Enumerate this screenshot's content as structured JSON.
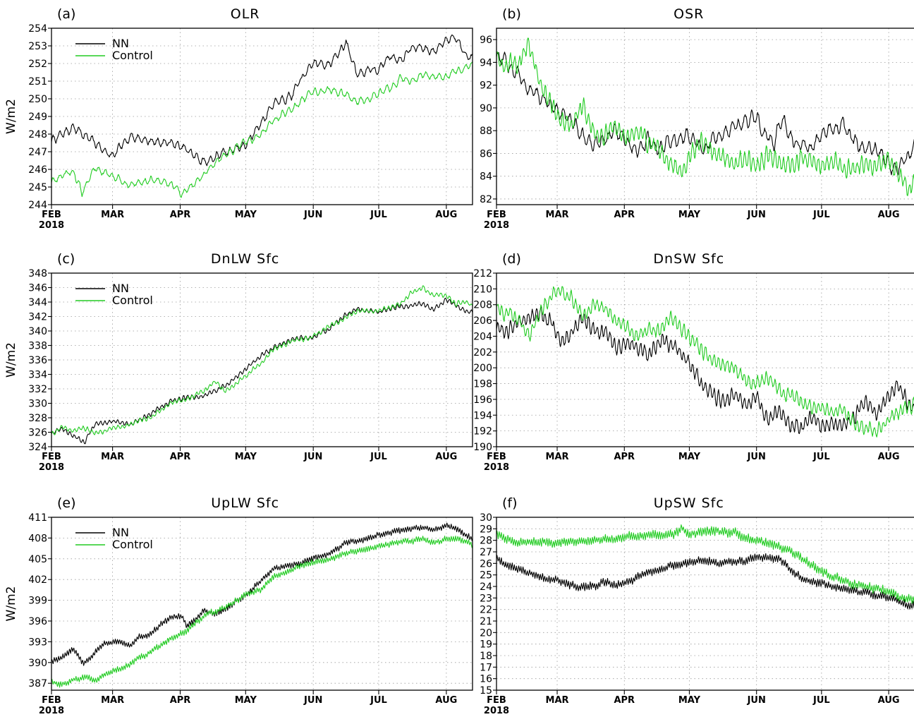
{
  "colors": {
    "nn": "#000000",
    "control": "#22cc22",
    "grid": "#9a9a9a"
  },
  "x_axis": {
    "ticks": [
      {
        "label": "FEB",
        "day": 0,
        "sub": "2018"
      },
      {
        "label": "MAR",
        "day": 28
      },
      {
        "label": "APR",
        "day": 59
      },
      {
        "label": "MAY",
        "day": 89
      },
      {
        "label": "JUN",
        "day": 120
      },
      {
        "label": "JUL",
        "day": 150
      },
      {
        "label": "AUG",
        "day": 181
      }
    ],
    "range": [
      0,
      193
    ]
  },
  "chart_data": [
    {
      "type": "line",
      "panel": "(a)",
      "title": "OLR",
      "ylabel": "W/m2",
      "ylim": [
        244,
        254
      ],
      "yticks": [
        244,
        245,
        246,
        247,
        248,
        249,
        250,
        251,
        252,
        253,
        254
      ],
      "grid": true,
      "legend": "top-left",
      "series": [
        {
          "name": "NN",
          "color": "#000000",
          "x": [
            0,
            10,
            20,
            28,
            36,
            45,
            55,
            62,
            70,
            80,
            89,
            96,
            102,
            110,
            115,
            120,
            128,
            135,
            140,
            145,
            150,
            155,
            160,
            165,
            170,
            175,
            181,
            185,
            190,
            193
          ],
          "y": [
            247.6,
            248.4,
            247.5,
            246.7,
            247.9,
            247.6,
            247.5,
            247.1,
            246.4,
            247.0,
            247.4,
            248.6,
            249.8,
            250.2,
            251.2,
            252.0,
            252.0,
            253.2,
            251.4,
            251.6,
            251.7,
            252.4,
            252.2,
            253.0,
            252.9,
            252.6,
            253.4,
            253.5,
            252.5,
            252.3
          ],
          "jitter": 0.35,
          "period": 3
        },
        {
          "name": "Control",
          "color": "#22cc22",
          "x": [
            0,
            10,
            14,
            20,
            28,
            36,
            45,
            55,
            60,
            70,
            80,
            89,
            96,
            102,
            110,
            115,
            120,
            128,
            135,
            140,
            145,
            150,
            155,
            160,
            165,
            170,
            175,
            181,
            185,
            190,
            193
          ],
          "y": [
            245.3,
            245.9,
            244.7,
            246.1,
            245.6,
            245.1,
            245.4,
            245.2,
            244.6,
            245.7,
            246.9,
            247.5,
            248.0,
            248.8,
            249.4,
            249.9,
            250.3,
            250.5,
            250.2,
            249.8,
            250.0,
            250.3,
            250.6,
            251.2,
            251.0,
            251.4,
            251.3,
            251.2,
            251.5,
            251.8,
            251.9
          ],
          "jitter": 0.3,
          "period": 3
        }
      ]
    },
    {
      "type": "line",
      "panel": "(b)",
      "title": "OSR",
      "ylabel": "",
      "ylim": [
        81.5,
        97
      ],
      "yticks": [
        82,
        84,
        86,
        88,
        90,
        92,
        94,
        96
      ],
      "grid": true,
      "legend": "none",
      "series": [
        {
          "name": "NN",
          "color": "#000000",
          "x": [
            0,
            5,
            10,
            15,
            20,
            25,
            30,
            35,
            40,
            45,
            50,
            55,
            60,
            65,
            70,
            75,
            80,
            89,
            95,
            100,
            110,
            115,
            120,
            125,
            128,
            132,
            135,
            140,
            145,
            150,
            155,
            160,
            165,
            170,
            175,
            181,
            185,
            190,
            193
          ],
          "y": [
            94.6,
            93.8,
            93.0,
            91.5,
            91.0,
            90.2,
            89.5,
            88.6,
            87.5,
            86.8,
            87.2,
            88.2,
            86.8,
            86.2,
            87.2,
            86.5,
            87.0,
            87.6,
            86.3,
            87.3,
            88.3,
            88.9,
            89.2,
            87.5,
            86.8,
            89.5,
            87.3,
            86.8,
            86.5,
            87.4,
            88.2,
            88.6,
            87.0,
            86.3,
            86.5,
            85.0,
            84.6,
            85.8,
            86.8
          ],
          "jitter": 0.9,
          "period": 3
        },
        {
          "name": "Control",
          "color": "#22cc22",
          "x": [
            0,
            5,
            10,
            15,
            20,
            25,
            30,
            35,
            40,
            45,
            50,
            55,
            60,
            65,
            70,
            75,
            80,
            85,
            89,
            95,
            100,
            105,
            110,
            115,
            120,
            125,
            130,
            135,
            140,
            145,
            150,
            155,
            160,
            165,
            170,
            175,
            181,
            185,
            190,
            193
          ],
          "y": [
            94.6,
            93.5,
            94.0,
            95.8,
            92.0,
            90.5,
            88.8,
            88.5,
            90.2,
            87.8,
            87.5,
            88.5,
            87.0,
            88.2,
            87.0,
            86.5,
            85.2,
            84.4,
            85.8,
            86.8,
            86.0,
            85.8,
            85.3,
            85.5,
            85.0,
            85.8,
            85.2,
            85.0,
            85.5,
            85.3,
            84.8,
            85.5,
            84.5,
            84.6,
            85.2,
            84.8,
            85.5,
            84.3,
            83.0,
            83.2
          ],
          "jitter": 1.1,
          "period": 2
        }
      ]
    },
    {
      "type": "line",
      "panel": "(c)",
      "title": "DnLW Sfc",
      "ylabel": "W/m2",
      "ylim": [
        324,
        348
      ],
      "yticks": [
        324,
        326,
        328,
        330,
        332,
        334,
        336,
        338,
        340,
        342,
        344,
        346,
        348
      ],
      "grid": true,
      "legend": "top-left",
      "series": [
        {
          "name": "NN",
          "color": "#000000",
          "x": [
            0,
            5,
            10,
            15,
            20,
            28,
            36,
            45,
            55,
            62,
            70,
            80,
            89,
            96,
            102,
            110,
            115,
            120,
            128,
            135,
            140,
            150,
            160,
            170,
            175,
            181,
            185,
            190,
            193
          ],
          "y": [
            325.8,
            326.5,
            325.5,
            324.6,
            327.2,
            327.5,
            327.0,
            328.5,
            330.4,
            330.8,
            331.0,
            332.5,
            334.6,
            336.5,
            337.8,
            338.8,
            339.1,
            339.0,
            340.5,
            342.3,
            343.0,
            342.6,
            343.4,
            343.8,
            343.0,
            344.3,
            343.6,
            342.8,
            342.4
          ],
          "jitter": 0.45,
          "period": 2
        },
        {
          "name": "Control",
          "color": "#22cc22",
          "x": [
            0,
            5,
            10,
            15,
            20,
            28,
            36,
            45,
            55,
            62,
            70,
            75,
            80,
            89,
            96,
            102,
            110,
            115,
            120,
            128,
            135,
            140,
            150,
            160,
            165,
            170,
            175,
            181,
            185,
            190,
            193
          ],
          "y": [
            325.8,
            326.7,
            326.2,
            326.6,
            325.8,
            326.5,
            327.2,
            328.0,
            330.2,
            330.5,
            331.8,
            333.0,
            331.6,
            333.8,
            335.5,
            337.5,
            338.6,
            338.8,
            339.2,
            340.8,
            341.8,
            342.8,
            342.7,
            343.8,
            345.3,
            346.0,
            345.0,
            345.0,
            343.8,
            344.0,
            343.5
          ],
          "jitter": 0.45,
          "period": 2
        }
      ]
    },
    {
      "type": "line",
      "panel": "(d)",
      "title": "DnSW Sfc",
      "ylabel": "",
      "ylim": [
        190,
        212
      ],
      "yticks": [
        190,
        192,
        194,
        196,
        198,
        200,
        202,
        204,
        206,
        208,
        210,
        212
      ],
      "grid": true,
      "legend": "none",
      "series": [
        {
          "name": "NN",
          "color": "#000000",
          "x": [
            0,
            5,
            10,
            15,
            20,
            25,
            30,
            35,
            40,
            45,
            50,
            55,
            60,
            65,
            70,
            75,
            80,
            85,
            89,
            95,
            100,
            105,
            110,
            115,
            120,
            125,
            130,
            135,
            140,
            145,
            150,
            155,
            160,
            165,
            170,
            175,
            181,
            185,
            190,
            193
          ],
          "y": [
            205.0,
            204.5,
            206.0,
            206.5,
            207.0,
            205.8,
            203.0,
            204.5,
            206.0,
            205.0,
            204.5,
            202.5,
            203.0,
            202.8,
            201.5,
            203.5,
            203.0,
            202.0,
            200.5,
            197.8,
            196.8,
            196.0,
            196.5,
            195.0,
            196.2,
            193.5,
            194.8,
            193.0,
            192.5,
            193.5,
            192.5,
            193.0,
            192.8,
            193.8,
            195.5,
            194.0,
            196.5,
            198.0,
            195.5,
            194.8
          ],
          "jitter": 1.3,
          "period": 2
        },
        {
          "name": "Control",
          "color": "#22cc22",
          "x": [
            0,
            5,
            10,
            15,
            20,
            25,
            30,
            35,
            40,
            45,
            50,
            55,
            60,
            65,
            70,
            75,
            80,
            85,
            89,
            95,
            100,
            105,
            110,
            115,
            120,
            125,
            130,
            135,
            140,
            145,
            150,
            155,
            160,
            165,
            170,
            175,
            181,
            185,
            190,
            193
          ],
          "y": [
            207.8,
            207.0,
            206.0,
            204.0,
            207.0,
            209.0,
            209.8,
            208.5,
            206.5,
            208.0,
            207.5,
            206.0,
            205.5,
            204.0,
            205.0,
            204.5,
            206.5,
            204.8,
            204.0,
            202.0,
            201.0,
            200.5,
            200.0,
            198.5,
            197.8,
            199.0,
            197.5,
            196.5,
            195.8,
            195.0,
            195.0,
            194.5,
            194.8,
            193.0,
            192.2,
            191.8,
            193.5,
            194.5,
            195.0,
            195.5
          ],
          "jitter": 1.2,
          "period": 2
        }
      ]
    },
    {
      "type": "line",
      "panel": "(e)",
      "title": "UpLW Sfc",
      "ylabel": "W/m2",
      "ylim": [
        386,
        411
      ],
      "yticks": [
        387,
        390,
        393,
        396,
        399,
        402,
        405,
        408,
        411
      ],
      "grid": true,
      "legend": "top-left",
      "series": [
        {
          "name": "NN",
          "color": "#000000",
          "x": [
            0,
            5,
            10,
            15,
            20,
            25,
            30,
            36,
            40,
            45,
            50,
            55,
            60,
            62,
            65,
            70,
            75,
            80,
            89,
            95,
            102,
            110,
            115,
            120,
            128,
            135,
            140,
            145,
            150,
            160,
            170,
            175,
            181,
            185,
            190,
            193
          ],
          "y": [
            390.2,
            390.8,
            391.8,
            389.8,
            391.5,
            392.8,
            393.0,
            392.5,
            393.6,
            394.0,
            395.5,
            396.5,
            396.6,
            395.2,
            396.0,
            397.5,
            397.0,
            397.8,
            399.8,
            401.5,
            403.5,
            404.2,
            404.5,
            405.2,
            405.8,
            407.3,
            407.5,
            408.0,
            408.5,
            409.0,
            409.5,
            409.2,
            409.8,
            409.5,
            408.5,
            407.8
          ],
          "jitter": 0.55,
          "period": 1
        },
        {
          "name": "Control",
          "color": "#22cc22",
          "x": [
            0,
            5,
            10,
            15,
            20,
            28,
            36,
            45,
            55,
            62,
            70,
            80,
            89,
            96,
            102,
            110,
            115,
            120,
            128,
            135,
            140,
            150,
            160,
            170,
            175,
            181,
            185,
            190,
            193
          ],
          "y": [
            387.2,
            386.8,
            387.5,
            387.8,
            387.5,
            388.8,
            389.8,
            391.5,
            393.5,
            394.5,
            396.8,
            398.0,
            399.8,
            400.5,
            402.5,
            403.5,
            404.0,
            404.5,
            405.0,
            405.8,
            406.2,
            406.8,
            407.5,
            407.8,
            407.3,
            407.8,
            408.0,
            407.5,
            407.0
          ],
          "jitter": 0.55,
          "period": 1
        }
      ]
    },
    {
      "type": "line",
      "panel": "(f)",
      "title": "UpSW Sfc",
      "ylabel": "",
      "ylim": [
        15,
        30
      ],
      "yticks": [
        15,
        16,
        17,
        18,
        19,
        20,
        21,
        22,
        23,
        24,
        25,
        26,
        27,
        28,
        29,
        30
      ],
      "grid": true,
      "legend": "none",
      "series": [
        {
          "name": "NN",
          "color": "#000000",
          "x": [
            0,
            5,
            10,
            20,
            28,
            36,
            45,
            50,
            55,
            62,
            70,
            80,
            89,
            96,
            102,
            110,
            115,
            120,
            125,
            130,
            135,
            140,
            145,
            150,
            160,
            170,
            181,
            185,
            190,
            193
          ],
          "y": [
            26.4,
            25.8,
            25.5,
            24.8,
            24.5,
            24.0,
            24.0,
            24.4,
            24.1,
            24.5,
            25.2,
            25.8,
            26.0,
            26.3,
            26.0,
            26.2,
            26.3,
            26.5,
            26.4,
            26.5,
            25.6,
            24.8,
            24.4,
            24.3,
            23.8,
            23.4,
            23.0,
            22.8,
            22.4,
            22.3
          ],
          "jitter": 0.45,
          "period": 1
        },
        {
          "name": "Control",
          "color": "#22cc22",
          "x": [
            0,
            5,
            10,
            20,
            28,
            36,
            45,
            55,
            62,
            70,
            80,
            86,
            89,
            96,
            102,
            110,
            115,
            120,
            125,
            130,
            135,
            140,
            145,
            150,
            160,
            170,
            181,
            185,
            190,
            193
          ],
          "y": [
            28.5,
            28.0,
            27.8,
            27.8,
            27.8,
            27.9,
            28.0,
            28.2,
            28.3,
            28.5,
            28.5,
            29.0,
            28.5,
            28.8,
            28.8,
            28.6,
            28.2,
            28.0,
            27.8,
            27.5,
            27.2,
            26.5,
            25.8,
            25.3,
            24.5,
            24.0,
            23.5,
            23.2,
            23.0,
            22.9
          ],
          "jitter": 0.5,
          "period": 1
        }
      ]
    }
  ]
}
